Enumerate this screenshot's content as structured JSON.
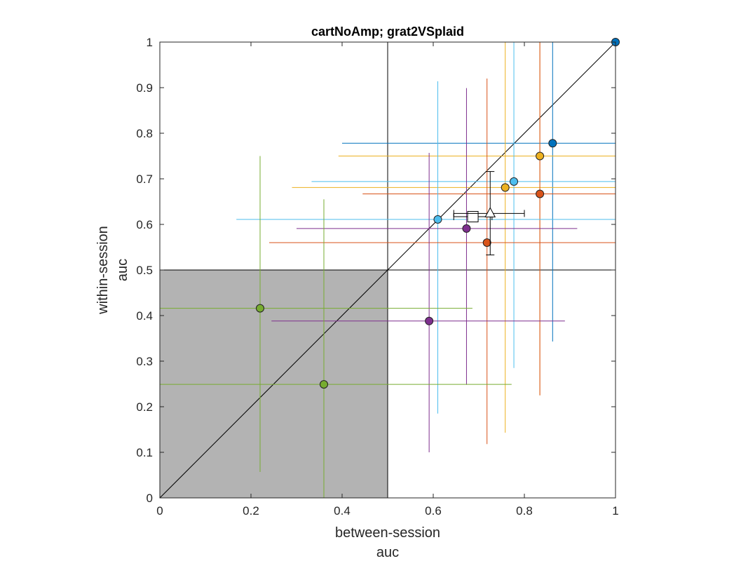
{
  "chart_data": {
    "type": "scatter",
    "title": "cartNoAmp; grat2VSplaid",
    "xlabel": [
      "between-session",
      "auc"
    ],
    "ylabel": [
      "within-session",
      "auc"
    ],
    "xlim": [
      0,
      1
    ],
    "ylim": [
      0,
      1
    ],
    "xticks": [
      "0",
      "0.2",
      "0.4",
      "0.6",
      "0.8",
      "1"
    ],
    "yticks": [
      "0",
      "0.1",
      "0.2",
      "0.3",
      "0.4",
      "0.5",
      "0.6",
      "0.7",
      "0.8",
      "0.9",
      "1"
    ],
    "grid": false,
    "reference_lines": {
      "diagonal": true,
      "x": 0.5,
      "y": 0.5
    },
    "shaded_region": {
      "x": [
        0,
        0.5
      ],
      "y": [
        0,
        0.5
      ],
      "color": "#b3b3b3"
    },
    "points": [
      {
        "x": 1.0,
        "y": 1.0,
        "xerr": [
          1.0,
          1.0
        ],
        "yerr": [
          1.0,
          1.0
        ],
        "color": "#0072BD"
      },
      {
        "x": 0.862,
        "y": 0.778,
        "xerr": [
          0.4,
          1.0
        ],
        "yerr": [
          0.343,
          1.0
        ],
        "color": "#0072BD"
      },
      {
        "x": 0.834,
        "y": 0.75,
        "xerr": [
          0.392,
          1.0
        ],
        "yerr": [
          0.225,
          1.0
        ],
        "color": "#EDB120"
      },
      {
        "x": 0.758,
        "y": 0.681,
        "xerr": [
          0.29,
          1.0
        ],
        "yerr": [
          0.143,
          1.0
        ],
        "color": "#EDB120"
      },
      {
        "x": 0.777,
        "y": 0.694,
        "xerr": [
          0.333,
          1.0
        ],
        "yerr": [
          0.285,
          1.0
        ],
        "color": "#4DBEEE"
      },
      {
        "x": 0.834,
        "y": 0.667,
        "xerr": [
          0.445,
          1.0
        ],
        "yerr": [
          0.225,
          1.0
        ],
        "color": "#D95319"
      },
      {
        "x": 0.61,
        "y": 0.611,
        "xerr": [
          0.168,
          1.0
        ],
        "yerr": [
          0.185,
          0.914
        ],
        "color": "#4DBEEE"
      },
      {
        "x": 0.673,
        "y": 0.591,
        "xerr": [
          0.3,
          0.916
        ],
        "yerr": [
          0.248,
          0.899
        ],
        "color": "#7E2F8E"
      },
      {
        "x": 0.718,
        "y": 0.56,
        "xerr": [
          0.24,
          1.0
        ],
        "yerr": [
          0.118,
          0.92
        ],
        "color": "#D95319"
      },
      {
        "x": 0.591,
        "y": 0.388,
        "xerr": [
          0.245,
          0.889
        ],
        "yerr": [
          0.1,
          0.757
        ],
        "color": "#7E2F8E"
      },
      {
        "x": 0.22,
        "y": 0.416,
        "xerr": [
          0.0,
          0.686
        ],
        "yerr": [
          0.057,
          0.75
        ],
        "color": "#77AC30"
      },
      {
        "x": 0.36,
        "y": 0.249,
        "xerr": [
          0.0,
          0.772
        ],
        "yerr": [
          0.0,
          0.655
        ],
        "color": "#77AC30"
      }
    ],
    "summary_markers": [
      {
        "shape": "square",
        "x": 0.687,
        "y": 0.617,
        "xerr": [
          0.645,
          0.729
        ],
        "yerr": null
      },
      {
        "shape": "triangle",
        "x": 0.725,
        "y": 0.624,
        "xerr": [
          0.645,
          0.8
        ],
        "yerr": [
          0.533,
          0.716
        ]
      }
    ]
  }
}
